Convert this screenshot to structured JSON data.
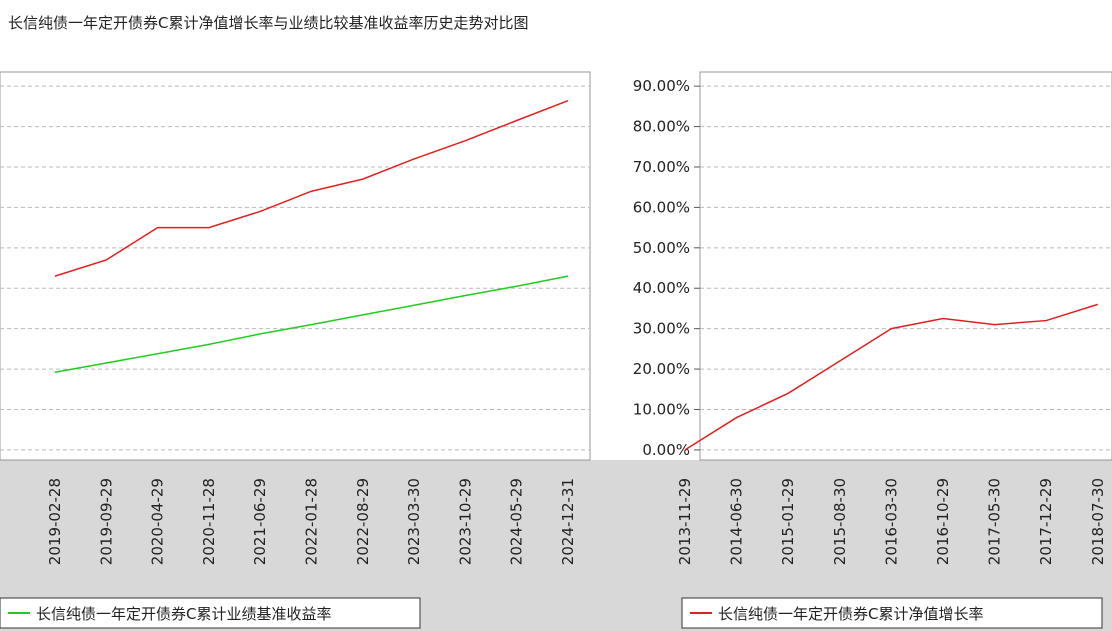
{
  "title": "长信纯债一年定开债券C累计净值增长率与业绩比较基准收益率历史走势对比图",
  "chart_data": [
    {
      "type": "line",
      "categories": [
        "2019-02-28",
        "2019-09-29",
        "2020-04-29",
        "2020-11-28",
        "2021-06-29",
        "2022-01-28",
        "2022-08-29",
        "2023-03-30",
        "2023-10-29",
        "2024-05-29",
        "2024-12-31"
      ],
      "series": [
        {
          "color": "#e02020",
          "values": [
            43,
            47,
            55,
            55,
            59,
            64,
            67,
            72,
            76.5,
            81.5,
            86.4
          ]
        },
        {
          "name": "长信纯债一年定开债券C累计业绩基准收益率",
          "color": "#22cc22",
          "values": [
            19.2,
            21.5,
            23.8,
            26.1,
            28.7,
            31,
            33.4,
            35.8,
            38.2,
            40.5,
            43
          ]
        }
      ],
      "ylim": [
        -2.5,
        93.5
      ],
      "grid": true
    },
    {
      "type": "line",
      "categories": [
        "2013-11-29",
        "2014-06-30",
        "2015-01-29",
        "2015-08-30",
        "2016-03-30",
        "2016-10-29",
        "2017-05-30",
        "2017-12-29",
        "2018-07-30"
      ],
      "series": [
        {
          "name": "长信纯债一年定开债券C累计净值增长率",
          "color": "#e02020",
          "values": [
            0,
            8,
            14,
            22,
            30,
            32.5,
            31,
            32,
            36
          ]
        }
      ],
      "ylim": [
        -2.5,
        93.5
      ],
      "yticks": [
        {
          "value": 0,
          "label": "0.00%"
        },
        {
          "value": 10,
          "label": "10.00%"
        },
        {
          "value": 20,
          "label": "20.00%"
        },
        {
          "value": 30,
          "label": "30.00%"
        },
        {
          "value": 40,
          "label": "40.00%"
        },
        {
          "value": 50,
          "label": "50.00%"
        },
        {
          "value": 60,
          "label": "60.00%"
        },
        {
          "value": 70,
          "label": "70.00%"
        },
        {
          "value": 80,
          "label": "80.00%"
        },
        {
          "value": 90,
          "label": "90.00%"
        }
      ],
      "grid": true
    }
  ]
}
